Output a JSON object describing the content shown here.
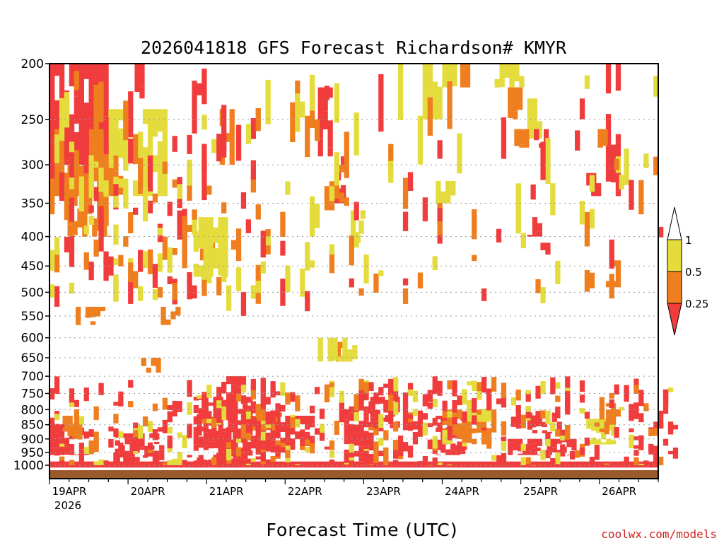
{
  "chart_data": {
    "type": "heatmap",
    "title": "2026041818 GFS Forecast Richardson# KMYR",
    "xlabel": "Forecast Time (UTC)",
    "ylabel": "",
    "watermark": "coolwx.com/models",
    "x_range_hours": [
      0,
      186
    ],
    "x_ticks": [
      {
        "hour": 0,
        "label": "19APR",
        "sublabel": "2026"
      },
      {
        "hour": 24,
        "label": "20APR"
      },
      {
        "hour": 48,
        "label": "21APR"
      },
      {
        "hour": 72,
        "label": "22APR"
      },
      {
        "hour": 96,
        "label": "23APR"
      },
      {
        "hour": 120,
        "label": "24APR"
      },
      {
        "hour": 144,
        "label": "25APR"
      },
      {
        "hour": 168,
        "label": "26APR"
      }
    ],
    "y_range_hpa": [
      1020,
      200
    ],
    "y_ticks": [
      200,
      250,
      300,
      350,
      400,
      450,
      500,
      550,
      600,
      650,
      700,
      750,
      800,
      850,
      900,
      950,
      1000
    ],
    "colorbar": {
      "levels": [
        "0.25",
        "0.5",
        "1"
      ],
      "bins": [
        {
          "range": "< 0.25",
          "color": "#f03c3c"
        },
        {
          "range": "0.25 - 0.5",
          "color": "#ee7e1e"
        },
        {
          "range": "0.5 - 1",
          "color": "#e4dc3c"
        },
        {
          "range": "> 1",
          "color": "#ffffff"
        }
      ]
    },
    "ground_color": "#9a5a2c",
    "surface_line_color": "#ffffff",
    "approx_regions": [
      {
        "h0": 0,
        "h1": 18,
        "p0": 200,
        "p1": 300,
        "cat": "red"
      },
      {
        "h0": 0,
        "h1": 24,
        "p0": 260,
        "p1": 340,
        "cat": "orange"
      },
      {
        "h0": 4,
        "h1": 18,
        "p0": 300,
        "p1": 400,
        "cat": "orange"
      },
      {
        "h0": 18,
        "h1": 36,
        "p0": 240,
        "p1": 340,
        "cat": "yellow"
      },
      {
        "h0": 26,
        "h1": 30,
        "p0": 200,
        "p1": 230,
        "cat": "red"
      },
      {
        "h0": 8,
        "h1": 16,
        "p0": 530,
        "p1": 570,
        "cat": "orange"
      },
      {
        "h0": 34,
        "h1": 40,
        "p0": 530,
        "p1": 570,
        "cat": "orange"
      },
      {
        "h0": 46,
        "h1": 50,
        "p0": 380,
        "p1": 440,
        "cat": "orange"
      },
      {
        "h0": 44,
        "h1": 54,
        "p0": 370,
        "p1": 470,
        "cat": "yellow"
      },
      {
        "h0": 28,
        "h1": 34,
        "p0": 650,
        "p1": 690,
        "cat": "orange"
      },
      {
        "h0": 52,
        "h1": 56,
        "p0": 240,
        "p1": 300,
        "cat": "orange"
      },
      {
        "h0": 60,
        "h1": 62,
        "p0": 240,
        "p1": 270,
        "cat": "red"
      },
      {
        "h0": 82,
        "h1": 86,
        "p0": 220,
        "p1": 290,
        "cat": "red"
      },
      {
        "h0": 86,
        "h1": 92,
        "p0": 290,
        "p1": 350,
        "cat": "red"
      },
      {
        "h0": 84,
        "h1": 90,
        "p0": 300,
        "p1": 360,
        "cat": "orange"
      },
      {
        "h0": 92,
        "h1": 96,
        "p0": 360,
        "p1": 410,
        "cat": "yellow"
      },
      {
        "h0": 86,
        "h1": 92,
        "p0": 610,
        "p1": 660,
        "cat": "orange"
      },
      {
        "h0": 82,
        "h1": 94,
        "p0": 600,
        "p1": 660,
        "cat": "yellow"
      },
      {
        "h0": 114,
        "h1": 120,
        "p0": 200,
        "p1": 250,
        "cat": "yellow"
      },
      {
        "h0": 120,
        "h1": 124,
        "p0": 200,
        "p1": 220,
        "cat": "yellow"
      },
      {
        "h0": 124,
        "h1": 128,
        "p0": 200,
        "p1": 220,
        "cat": "orange"
      },
      {
        "h0": 136,
        "h1": 144,
        "p0": 200,
        "p1": 220,
        "cat": "yellow"
      },
      {
        "h0": 140,
        "h1": 144,
        "p0": 220,
        "p1": 250,
        "cat": "orange"
      },
      {
        "h0": 146,
        "h1": 150,
        "p0": 230,
        "p1": 270,
        "cat": "yellow"
      },
      {
        "h0": 142,
        "h1": 148,
        "p0": 260,
        "p1": 280,
        "cat": "orange"
      },
      {
        "h0": 148,
        "h1": 152,
        "p0": 260,
        "p1": 280,
        "cat": "red"
      },
      {
        "h0": 118,
        "h1": 124,
        "p0": 320,
        "p1": 350,
        "cat": "yellow"
      },
      {
        "h0": 146,
        "h1": 150,
        "p0": 370,
        "p1": 400,
        "cat": "red"
      },
      {
        "h0": 150,
        "h1": 152,
        "p0": 410,
        "p1": 430,
        "cat": "red"
      },
      {
        "h0": 170,
        "h1": 174,
        "p0": 200,
        "p1": 340,
        "cat": "red"
      },
      {
        "h0": 166,
        "h1": 170,
        "p0": 260,
        "p1": 280,
        "cat": "orange"
      },
      {
        "h0": 170,
        "h1": 174,
        "p0": 290,
        "p1": 310,
        "cat": "yellow"
      },
      {
        "h0": 164,
        "h1": 168,
        "p0": 310,
        "p1": 340,
        "cat": "red"
      },
      {
        "h0": 162,
        "h1": 164,
        "p0": 230,
        "p1": 250,
        "cat": "red"
      },
      {
        "h0": 170,
        "h1": 174,
        "p0": 440,
        "p1": 490,
        "cat": "orange"
      },
      {
        "h0": 44,
        "h1": 62,
        "p0": 760,
        "p1": 1000,
        "cat": "red"
      },
      {
        "h0": 54,
        "h1": 60,
        "p0": 700,
        "p1": 780,
        "cat": "red"
      },
      {
        "h0": 60,
        "h1": 80,
        "p0": 820,
        "p1": 940,
        "cat": "red"
      },
      {
        "h0": 62,
        "h1": 70,
        "p0": 810,
        "p1": 870,
        "cat": "orange"
      },
      {
        "h0": 20,
        "h1": 34,
        "p0": 880,
        "p1": 1000,
        "cat": "red"
      },
      {
        "h0": 0,
        "h1": 12,
        "p0": 860,
        "p1": 960,
        "cat": "red"
      },
      {
        "h0": 4,
        "h1": 10,
        "p0": 820,
        "p1": 900,
        "cat": "orange"
      },
      {
        "h0": 90,
        "h1": 98,
        "p0": 790,
        "p1": 1000,
        "cat": "red"
      },
      {
        "h0": 98,
        "h1": 106,
        "p0": 760,
        "p1": 860,
        "cat": "red"
      },
      {
        "h0": 118,
        "h1": 126,
        "p0": 820,
        "p1": 960,
        "cat": "red"
      },
      {
        "h0": 120,
        "h1": 136,
        "p0": 800,
        "p1": 920,
        "cat": "orange"
      },
      {
        "h0": 126,
        "h1": 134,
        "p0": 770,
        "p1": 840,
        "cat": "yellow"
      },
      {
        "h0": 140,
        "h1": 160,
        "p0": 900,
        "p1": 960,
        "cat": "red"
      },
      {
        "h0": 146,
        "h1": 156,
        "p0": 810,
        "p1": 880,
        "cat": "red"
      },
      {
        "h0": 164,
        "h1": 172,
        "p0": 830,
        "p1": 920,
        "cat": "yellow"
      },
      {
        "h0": 170,
        "h1": 174,
        "p0": 780,
        "p1": 850,
        "cat": "orange"
      },
      {
        "h0": 0,
        "h1": 186,
        "p0": 985,
        "p1": 1012,
        "cat": "red"
      }
    ],
    "density": {
      "upper": {
        "p0": 200,
        "p1": 500,
        "weights": [
          3.0,
          2.6,
          1.4,
          1.2,
          1.0,
          0.6,
          0.6,
          0.7
        ]
      },
      "lower": {
        "p0": 700,
        "p1": 1000,
        "weights": [
          1.2,
          1.6,
          2.4,
          1.0,
          2.2,
          1.4,
          1.8,
          1.3
        ]
      }
    }
  }
}
